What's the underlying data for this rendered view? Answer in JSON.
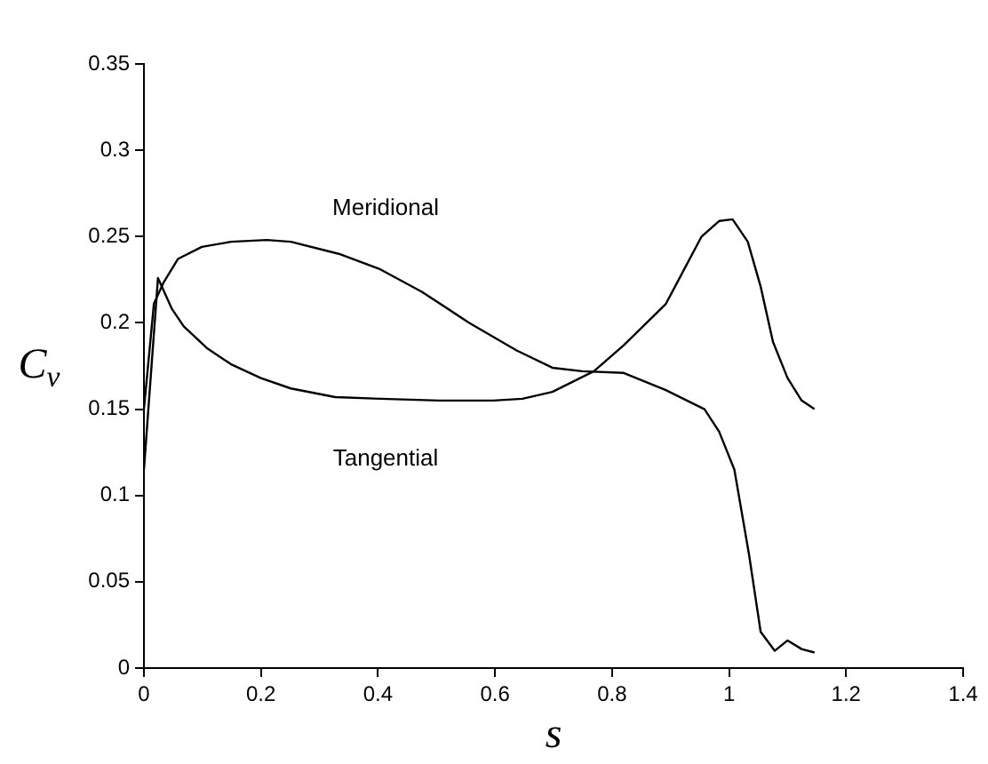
{
  "chart_data": {
    "type": "line",
    "xlabel": "s",
    "ylabel": "C$_{v}$",
    "xlim": [
      0,
      1.4
    ],
    "xticks": [
      0,
      0.2,
      0.4,
      0.6,
      0.8,
      1,
      1.2,
      1.4
    ],
    "ylim": [
      0,
      0.35
    ],
    "yticks": [
      0,
      0.05,
      0.1,
      0.15,
      0.2,
      0.25,
      0.3,
      0.35
    ],
    "grid": false,
    "legend": false,
    "marker": "none",
    "line_style": "solid",
    "series": [
      {
        "name": "Meridional",
        "color": "#000000",
        "x": [
          0,
          0.017,
          0.033,
          0.058,
          0.099,
          0.149,
          0.21,
          0.251,
          0.333,
          0.404,
          0.475,
          0.556,
          0.637,
          0.698,
          0.749,
          0.82,
          0.892,
          0.958,
          0.983,
          1.009,
          1.034,
          1.054,
          1.078,
          1.1,
          1.124,
          1.146
        ],
        "values": [
          0.15,
          0.211,
          0.223,
          0.237,
          0.244,
          0.247,
          0.248,
          0.247,
          0.24,
          0.231,
          0.218,
          0.2,
          0.184,
          0.174,
          0.172,
          0.171,
          0.161,
          0.15,
          0.137,
          0.115,
          0.066,
          0.021,
          0.01,
          0.016,
          0.011,
          0.009
        ]
      },
      {
        "name": "Tangential",
        "color": "#000000",
        "x": [
          0,
          0.024,
          0.048,
          0.068,
          0.109,
          0.149,
          0.2,
          0.251,
          0.327,
          0.404,
          0.505,
          0.597,
          0.647,
          0.698,
          0.769,
          0.82,
          0.892,
          0.953,
          0.983,
          1.006,
          1.032,
          1.054,
          1.075,
          1.1,
          1.124,
          1.146
        ],
        "values": [
          0.115,
          0.226,
          0.208,
          0.198,
          0.185,
          0.176,
          0.168,
          0.162,
          0.157,
          0.156,
          0.155,
          0.155,
          0.156,
          0.16,
          0.172,
          0.187,
          0.211,
          0.25,
          0.259,
          0.26,
          0.247,
          0.221,
          0.189,
          0.168,
          0.155,
          0.15
        ]
      }
    ]
  }
}
